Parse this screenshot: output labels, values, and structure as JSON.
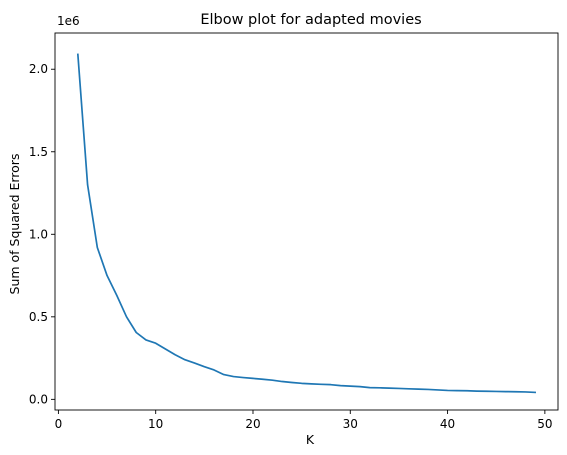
{
  "chart_data": {
    "type": "line",
    "title": "Elbow plot for adapted movies",
    "xlabel": "K",
    "ylabel": "Sum of Squared Errors",
    "y_offset_label": "1e6",
    "y_scale_factor": 1000000,
    "xlim": [
      -0.35,
      51.35
    ],
    "ylim": [
      -0.0645,
      2.2195
    ],
    "x_ticks": [
      0,
      10,
      20,
      30,
      40,
      50
    ],
    "y_ticks": [
      0.0,
      0.5,
      1.0,
      1.5,
      2.0
    ],
    "x_tick_labels": [
      "0",
      "10",
      "20",
      "30",
      "40",
      "50"
    ],
    "y_tick_labels": [
      "0.0",
      "0.5",
      "1.0",
      "1.5",
      "2.0"
    ],
    "grid": false,
    "series": [
      {
        "color": "#1f77b4",
        "x": [
          2,
          3,
          4,
          5,
          6,
          7,
          8,
          9,
          10,
          11,
          12,
          13,
          14,
          15,
          16,
          17,
          18,
          19,
          20,
          21,
          22,
          23,
          24,
          25,
          26,
          27,
          28,
          29,
          30,
          31,
          32,
          33,
          34,
          35,
          36,
          37,
          38,
          39,
          40,
          41,
          42,
          43,
          44,
          45,
          46,
          47,
          48,
          49
        ],
        "y": [
          2.09,
          1.3,
          0.92,
          0.75,
          0.63,
          0.5,
          0.405,
          0.36,
          0.34,
          0.305,
          0.27,
          0.24,
          0.22,
          0.198,
          0.178,
          0.15,
          0.138,
          0.132,
          0.127,
          0.122,
          0.116,
          0.108,
          0.102,
          0.097,
          0.094,
          0.091,
          0.089,
          0.083,
          0.08,
          0.077,
          0.071,
          0.07,
          0.068,
          0.066,
          0.064,
          0.062,
          0.06,
          0.057,
          0.054,
          0.053,
          0.052,
          0.05,
          0.049,
          0.048,
          0.047,
          0.046,
          0.045,
          0.042
        ]
      }
    ]
  }
}
